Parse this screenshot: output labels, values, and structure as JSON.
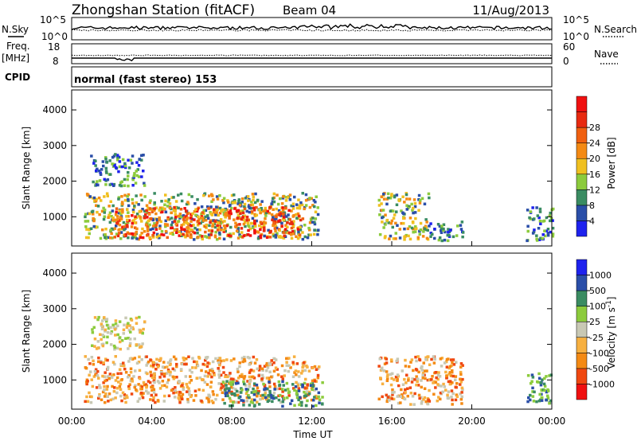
{
  "header": {
    "title": "Zhongshan Station (fitACF)",
    "beam": "Beam 04",
    "date": "11/Aug/2013"
  },
  "noise_panel": {
    "left_label": "N.Sky",
    "right_label": "N.Search",
    "left_ticks": [
      "10^5",
      "10^0"
    ],
    "right_ticks": [
      "10^5",
      "10^0"
    ]
  },
  "freq_panel": {
    "left_label_1": "Freq.",
    "left_label_2": "[MHz]",
    "right_label": "Nave",
    "left_ticks": [
      "18",
      "8"
    ],
    "right_ticks": [
      "60",
      "0"
    ]
  },
  "cpid": {
    "label": "CPID",
    "value": "normal (fast stereo) 153"
  },
  "x_axis": {
    "label": "Time UT",
    "ticks": [
      "00:00",
      "04:00",
      "08:00",
      "12:00",
      "16:00",
      "20:00",
      "00:00"
    ]
  },
  "colors": {
    "power": [
      "#1e22ee",
      "#2a4ea8",
      "#3a8c62",
      "#8ccb3c",
      "#f0c020",
      "#f48a14",
      "#f06010",
      "#e82a10",
      "#f01010"
    ],
    "velocity": [
      "#f01010",
      "#f04810",
      "#f48a14",
      "#f7b040",
      "#c8c8b4",
      "#8ccb3c",
      "#3a8c62",
      "#2a4ea8",
      "#1e22ee"
    ]
  },
  "chart_data": [
    {
      "type": "heatmap",
      "name": "power",
      "x_range": [
        "00:00",
        "24:00"
      ],
      "ylabel": "Slant Range [km]",
      "y_ticks": [
        1000,
        2000,
        3000,
        4000
      ],
      "ylim": [
        180,
        4560
      ],
      "colorbar": {
        "label": "Power [dB]",
        "ticks": [
          4,
          8,
          12,
          16,
          20,
          24,
          28
        ],
        "range": [
          0,
          32
        ]
      },
      "regions": [
        {
          "t": [
            0.6,
            12.3
          ],
          "r": [
            400,
            1700
          ],
          "level": "mid"
        },
        {
          "t": [
            0.9,
            3.6
          ],
          "r": [
            1900,
            2800
          ],
          "level": "low"
        },
        {
          "t": [
            2.0,
            11.5
          ],
          "r": [
            450,
            1300
          ],
          "level": "high"
        },
        {
          "t": [
            15.3,
            17.8
          ],
          "r": [
            400,
            1700
          ],
          "level": "mid"
        },
        {
          "t": [
            17.8,
            19.5
          ],
          "r": [
            350,
            900
          ],
          "level": "low"
        },
        {
          "t": [
            22.7,
            24.0
          ],
          "r": [
            350,
            1300
          ],
          "level": "low"
        }
      ]
    },
    {
      "type": "heatmap",
      "name": "velocity",
      "x_range": [
        "00:00",
        "24:00"
      ],
      "ylabel": "Slant Range [km]",
      "y_ticks": [
        1000,
        2000,
        3000,
        4000
      ],
      "ylim": [
        180,
        4560
      ],
      "colorbar": {
        "label": "Velocity [m s^-1]",
        "ticks": [
          -1000,
          -500,
          -100,
          -25,
          25,
          100,
          500,
          1000
        ]
      },
      "regions": [
        {
          "t": [
            0.6,
            12.3
          ],
          "r": [
            400,
            1700
          ],
          "level": "negative"
        },
        {
          "t": [
            0.9,
            3.6
          ],
          "r": [
            1900,
            2800
          ],
          "level": "near-zero"
        },
        {
          "t": [
            7.5,
            12.5
          ],
          "r": [
            300,
            1000
          ],
          "level": "positive"
        },
        {
          "t": [
            15.3,
            19.5
          ],
          "r": [
            350,
            1700
          ],
          "level": "negative"
        },
        {
          "t": [
            22.7,
            24.0
          ],
          "r": [
            350,
            1300
          ],
          "level": "positive"
        }
      ]
    }
  ]
}
